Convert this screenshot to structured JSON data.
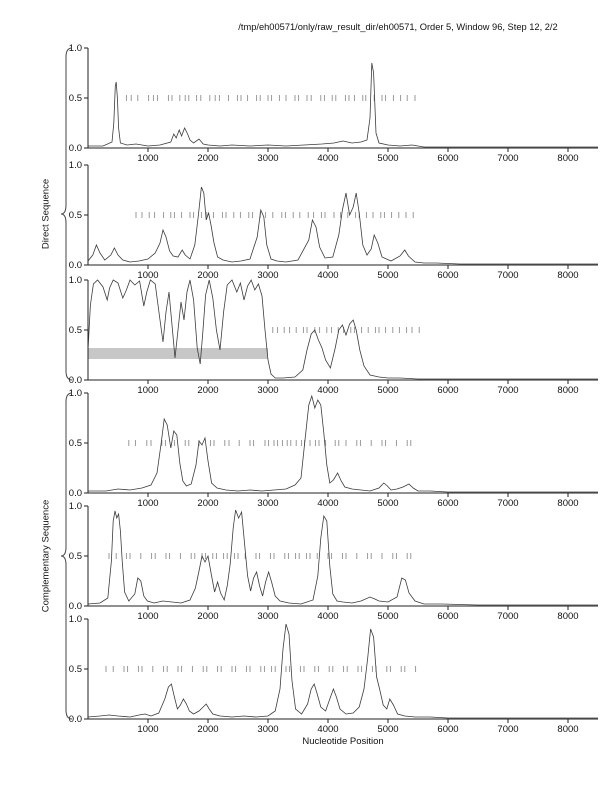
{
  "header": {
    "title": "/tmp/eh00571/only/raw_result_dir/eh00571, Order 5, Window 96, Step 12, 2/2"
  },
  "chart_data": {
    "type": "line",
    "xlabel": "Nucleotide Position",
    "xlim": [
      0,
      8500
    ],
    "ylim": [
      0,
      1
    ],
    "x_ticks": [
      1000,
      2000,
      3000,
      4000,
      5000,
      6000,
      7000,
      8000
    ],
    "y_ticks": [
      0,
      0.5,
      1
    ],
    "y_tick_labels": [
      "0.0",
      "0.5",
      "1.0"
    ],
    "group_labels": [
      "Direct Sequence",
      "Complementary Sequence"
    ],
    "marker_row_y": 0.5,
    "panels": [
      {
        "name": "direct-1",
        "x": [
          0,
          250,
          400,
          430,
          455,
          470,
          490,
          510,
          540,
          650,
          800,
          1000,
          1200,
          1380,
          1430,
          1470,
          1520,
          1560,
          1610,
          1660,
          1700,
          1760,
          1850,
          1920,
          2000,
          2200,
          2400,
          2700,
          3000,
          3300,
          3600,
          3900,
          4100,
          4250,
          4400,
          4550,
          4650,
          4700,
          4730,
          4760,
          4800,
          4850,
          5000,
          5200,
          5400,
          5600,
          6000,
          6500,
          7000,
          7500,
          8000,
          8500
        ],
        "y": [
          0.02,
          0.02,
          0.06,
          0.25,
          0.62,
          0.66,
          0.5,
          0.2,
          0.05,
          0.03,
          0.04,
          0.02,
          0.03,
          0.06,
          0.14,
          0.1,
          0.18,
          0.12,
          0.2,
          0.14,
          0.08,
          0.05,
          0.09,
          0.04,
          0.03,
          0.02,
          0.03,
          0.02,
          0.03,
          0.02,
          0.03,
          0.04,
          0.05,
          0.07,
          0.05,
          0.06,
          0.08,
          0.3,
          0.85,
          0.75,
          0.15,
          0.05,
          0.03,
          0.02,
          0.03,
          0.01,
          0.01,
          0.01,
          0.01,
          0.01,
          0.01,
          0.01
        ],
        "markers": [
          640,
          720,
          830,
          1010,
          1090,
          1160,
          1340,
          1400,
          1530,
          1620,
          1680,
          1810,
          1880,
          2030,
          2120,
          2190,
          2340,
          2490,
          2550,
          2660,
          2810,
          2870,
          3000,
          3060,
          3190,
          3300,
          3450,
          3510,
          3650,
          3720,
          3880,
          3940,
          4070,
          4130,
          4290,
          4350,
          4440,
          4580,
          4630,
          4770,
          4900,
          4960,
          5090,
          5210,
          5320,
          5450
        ]
      },
      {
        "name": "direct-2",
        "x": [
          0,
          80,
          140,
          200,
          280,
          380,
          440,
          500,
          580,
          700,
          850,
          1000,
          1120,
          1200,
          1250,
          1300,
          1360,
          1420,
          1500,
          1570,
          1620,
          1700,
          1780,
          1840,
          1890,
          1930,
          1970,
          2010,
          2050,
          2100,
          2160,
          2250,
          2400,
          2550,
          2700,
          2820,
          2880,
          2930,
          2980,
          3050,
          3150,
          3300,
          3500,
          3680,
          3740,
          3800,
          3860,
          3950,
          4080,
          4180,
          4240,
          4300,
          4360,
          4420,
          4470,
          4520,
          4580,
          4650,
          4720,
          4770,
          4830,
          4900,
          5050,
          5200,
          5280,
          5340,
          5450,
          5600,
          5800,
          6200,
          7000,
          8500
        ],
        "y": [
          0.04,
          0.1,
          0.2,
          0.12,
          0.05,
          0.1,
          0.17,
          0.1,
          0.05,
          0.03,
          0.04,
          0.06,
          0.12,
          0.22,
          0.35,
          0.28,
          0.14,
          0.09,
          0.08,
          0.15,
          0.1,
          0.06,
          0.2,
          0.5,
          0.78,
          0.72,
          0.45,
          0.52,
          0.4,
          0.22,
          0.08,
          0.05,
          0.03,
          0.04,
          0.06,
          0.28,
          0.55,
          0.48,
          0.2,
          0.06,
          0.04,
          0.03,
          0.05,
          0.25,
          0.45,
          0.38,
          0.18,
          0.07,
          0.08,
          0.3,
          0.55,
          0.72,
          0.5,
          0.58,
          0.72,
          0.52,
          0.2,
          0.1,
          0.16,
          0.3,
          0.22,
          0.08,
          0.04,
          0.09,
          0.15,
          0.09,
          0.03,
          0.02,
          0.02,
          0.01,
          0.01,
          0.01
        ],
        "markers": [
          800,
          900,
          1020,
          1110,
          1260,
          1380,
          1440,
          1560,
          1700,
          1760,
          1890,
          1980,
          2090,
          2240,
          2300,
          2430,
          2540,
          2680,
          2740,
          2870,
          2960,
          3080,
          3230,
          3290,
          3420,
          3530,
          3670,
          3760,
          3890,
          3950,
          4100,
          4210,
          4330,
          4460,
          4520,
          4640,
          4750,
          4880,
          4940,
          5060,
          5180,
          5300,
          5420
        ]
      },
      {
        "name": "direct-3",
        "x": [
          0,
          40,
          90,
          160,
          250,
          320,
          360,
          420,
          500,
          580,
          640,
          700,
          780,
          860,
          930,
          980,
          1040,
          1120,
          1200,
          1250,
          1300,
          1350,
          1400,
          1450,
          1500,
          1550,
          1600,
          1650,
          1700,
          1760,
          1820,
          1870,
          1910,
          1960,
          2020,
          2080,
          2140,
          2200,
          2260,
          2320,
          2400,
          2480,
          2540,
          2600,
          2660,
          2720,
          2780,
          2840,
          2900,
          2950,
          3000,
          3050,
          3120,
          3250,
          3450,
          3580,
          3650,
          3720,
          3780,
          3840,
          3900,
          3960,
          4040,
          4120,
          4180,
          4240,
          4300,
          4360,
          4420,
          4470,
          4530,
          4600,
          4700,
          4850,
          5000,
          5200,
          5500,
          6000,
          7000,
          8500
        ],
        "y": [
          0.3,
          0.75,
          0.96,
          1.0,
          0.93,
          0.8,
          0.92,
          1.0,
          0.97,
          0.82,
          0.9,
          1.0,
          0.95,
          0.99,
          0.74,
          0.88,
          1.0,
          0.96,
          0.6,
          0.38,
          0.68,
          0.88,
          0.55,
          0.22,
          0.5,
          0.78,
          0.6,
          0.88,
          1.0,
          0.8,
          0.32,
          0.16,
          0.45,
          0.85,
          1.0,
          0.82,
          0.5,
          0.3,
          0.68,
          0.95,
          1.0,
          0.88,
          0.97,
          0.8,
          0.94,
          1.0,
          0.9,
          0.96,
          0.84,
          0.5,
          0.2,
          0.06,
          0.02,
          0.02,
          0.03,
          0.1,
          0.3,
          0.46,
          0.5,
          0.4,
          0.32,
          0.2,
          0.12,
          0.32,
          0.5,
          0.55,
          0.45,
          0.56,
          0.6,
          0.5,
          0.3,
          0.14,
          0.05,
          0.03,
          0.02,
          0.02,
          0.01,
          0.01,
          0.01,
          0.01
        ],
        "markers": [
          3080,
          3160,
          3270,
          3360,
          3470,
          3590,
          3650,
          3780,
          3860,
          3980,
          4060,
          4170,
          4260,
          4380,
          4440,
          4560,
          4670,
          4790,
          4850,
          4960,
          5080,
          5190,
          5310,
          5400,
          5520
        ],
        "band": {
          "x0": 0,
          "x1": 3000,
          "y0": 0.21,
          "y1": 0.32
        }
      },
      {
        "name": "complementary-1",
        "x": [
          0,
          300,
          500,
          700,
          900,
          1050,
          1150,
          1220,
          1270,
          1320,
          1380,
          1430,
          1480,
          1530,
          1580,
          1640,
          1720,
          1800,
          1850,
          1900,
          1950,
          2000,
          2060,
          2150,
          2300,
          2500,
          2700,
          2900,
          3100,
          3300,
          3450,
          3550,
          3620,
          3680,
          3730,
          3780,
          3830,
          3880,
          3930,
          3980,
          4030,
          4090,
          4160,
          4220,
          4280,
          4400,
          4550,
          4700,
          4850,
          4930,
          4990,
          5050,
          5150,
          5250,
          5350,
          5420,
          5500,
          5700,
          6000,
          6500,
          7500,
          8500
        ],
        "y": [
          0.02,
          0.02,
          0.04,
          0.03,
          0.05,
          0.08,
          0.2,
          0.5,
          0.74,
          0.68,
          0.45,
          0.62,
          0.58,
          0.3,
          0.12,
          0.07,
          0.09,
          0.28,
          0.52,
          0.48,
          0.55,
          0.32,
          0.1,
          0.05,
          0.03,
          0.02,
          0.03,
          0.02,
          0.03,
          0.04,
          0.08,
          0.15,
          0.55,
          0.88,
          0.97,
          0.85,
          0.93,
          0.88,
          0.6,
          0.28,
          0.1,
          0.13,
          0.2,
          0.12,
          0.06,
          0.04,
          0.03,
          0.02,
          0.05,
          0.1,
          0.07,
          0.03,
          0.04,
          0.06,
          0.09,
          0.05,
          0.02,
          0.02,
          0.01,
          0.01,
          0.01,
          0.01
        ],
        "markers": [
          680,
          790,
          980,
          1050,
          1230,
          1290,
          1440,
          1620,
          1680,
          1850,
          2040,
          2100,
          2280,
          2350,
          2520,
          2700,
          2760,
          2950,
          3010,
          3100,
          3160,
          3240,
          3320,
          3380,
          3470,
          3560,
          3610,
          3700,
          3790,
          3850,
          3960,
          4120,
          4180,
          4300,
          4480,
          4540,
          4720,
          4900,
          4960,
          5140,
          5320,
          5380
        ]
      },
      {
        "name": "complementary-2",
        "x": [
          0,
          200,
          330,
          390,
          420,
          450,
          480,
          510,
          540,
          570,
          610,
          680,
          780,
          830,
          880,
          930,
          990,
          1100,
          1250,
          1400,
          1550,
          1700,
          1790,
          1850,
          1900,
          1950,
          2000,
          2060,
          2110,
          2160,
          2210,
          2270,
          2320,
          2370,
          2420,
          2460,
          2510,
          2560,
          2610,
          2660,
          2710,
          2760,
          2810,
          2860,
          2910,
          2960,
          3010,
          3060,
          3120,
          3200,
          3350,
          3550,
          3750,
          3830,
          3880,
          3930,
          3980,
          4030,
          4080,
          4150,
          4250,
          4400,
          4550,
          4700,
          4780,
          4850,
          5000,
          5150,
          5230,
          5290,
          5350,
          5450,
          5600,
          5900,
          6500,
          7500,
          8500
        ],
        "y": [
          0.02,
          0.03,
          0.08,
          0.45,
          0.85,
          0.95,
          0.88,
          0.92,
          0.75,
          0.45,
          0.14,
          0.05,
          0.12,
          0.28,
          0.25,
          0.1,
          0.05,
          0.03,
          0.05,
          0.04,
          0.03,
          0.06,
          0.18,
          0.35,
          0.5,
          0.44,
          0.5,
          0.3,
          0.14,
          0.24,
          0.13,
          0.06,
          0.2,
          0.42,
          0.78,
          0.96,
          0.88,
          0.94,
          0.62,
          0.3,
          0.15,
          0.28,
          0.34,
          0.2,
          0.1,
          0.24,
          0.34,
          0.24,
          0.1,
          0.05,
          0.03,
          0.02,
          0.06,
          0.3,
          0.68,
          0.9,
          0.85,
          0.4,
          0.12,
          0.05,
          0.04,
          0.03,
          0.05,
          0.09,
          0.07,
          0.05,
          0.04,
          0.09,
          0.28,
          0.26,
          0.13,
          0.05,
          0.02,
          0.02,
          0.01,
          0.01,
          0.01
        ],
        "markers": [
          350,
          470,
          640,
          700,
          880,
          1060,
          1120,
          1300,
          1360,
          1540,
          1720,
          1780,
          1900,
          1960,
          2080,
          2140,
          2260,
          2320,
          2440,
          2500,
          2620,
          2800,
          2860,
          3040,
          3100,
          3280,
          3340,
          3460,
          3520,
          3640,
          3700,
          3820,
          4000,
          4060,
          4240,
          4300,
          4480,
          4660,
          4720,
          4900,
          5080,
          5140,
          5320,
          5380
        ]
      },
      {
        "name": "complementary-3",
        "x": [
          0,
          200,
          350,
          500,
          700,
          850,
          950,
          1050,
          1180,
          1280,
          1340,
          1390,
          1440,
          1490,
          1540,
          1590,
          1640,
          1690,
          1760,
          1850,
          1920,
          1970,
          2020,
          2080,
          2200,
          2400,
          2600,
          2800,
          3000,
          3120,
          3200,
          3250,
          3300,
          3350,
          3400,
          3460,
          3560,
          3660,
          3720,
          3770,
          3820,
          3880,
          3960,
          4030,
          4090,
          4140,
          4200,
          4300,
          4420,
          4520,
          4600,
          4660,
          4710,
          4760,
          4810,
          4860,
          4920,
          4980,
          5030,
          5090,
          5160,
          5280,
          5450,
          5700,
          6000,
          6500,
          7500,
          8500
        ],
        "y": [
          0.02,
          0.03,
          0.04,
          0.03,
          0.02,
          0.04,
          0.05,
          0.03,
          0.06,
          0.2,
          0.32,
          0.35,
          0.22,
          0.1,
          0.14,
          0.2,
          0.15,
          0.08,
          0.05,
          0.08,
          0.12,
          0.15,
          0.1,
          0.05,
          0.03,
          0.02,
          0.03,
          0.02,
          0.03,
          0.08,
          0.3,
          0.7,
          0.95,
          0.85,
          0.38,
          0.1,
          0.05,
          0.15,
          0.3,
          0.35,
          0.25,
          0.12,
          0.08,
          0.2,
          0.3,
          0.22,
          0.1,
          0.05,
          0.06,
          0.12,
          0.3,
          0.6,
          0.9,
          0.82,
          0.42,
          0.3,
          0.14,
          0.1,
          0.2,
          0.14,
          0.05,
          0.03,
          0.02,
          0.02,
          0.01,
          0.01,
          0.01,
          0.01
        ],
        "markers": [
          300,
          420,
          600,
          660,
          840,
          900,
          1080,
          1260,
          1320,
          1500,
          1560,
          1740,
          1920,
          1980,
          2160,
          2220,
          2400,
          2460,
          2640,
          2700,
          2880,
          2940,
          3060,
          3120,
          3300,
          3360,
          3540,
          3600,
          3780,
          3840,
          4020,
          4080,
          4260,
          4320,
          4500,
          4560,
          4740,
          4800,
          4980,
          5040,
          5220,
          5280,
          5460
        ]
      }
    ]
  }
}
